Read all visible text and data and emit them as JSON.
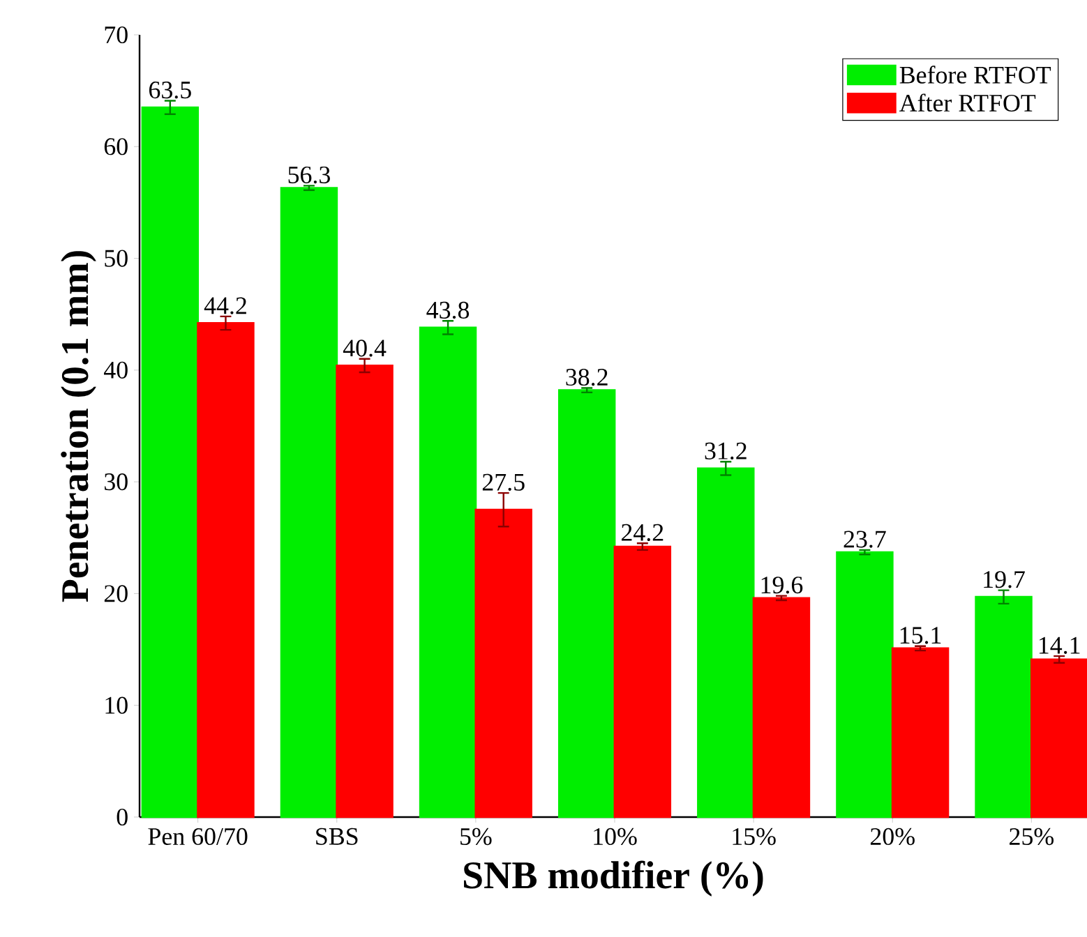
{
  "chart_data": {
    "type": "bar",
    "xlabel": "SNB modifier (%)",
    "ylabel": "Penetration (0.1 mm)",
    "categories": [
      "Pen 60/70",
      "SBS",
      "5%",
      "10%",
      "15%",
      "20%",
      "25%"
    ],
    "series": [
      {
        "name": "Before RTFOT",
        "color": "#00ee00",
        "values": [
          63.5,
          56.3,
          43.8,
          38.2,
          31.2,
          23.7,
          19.7
        ],
        "errors": [
          0.6,
          0.2,
          0.6,
          0.2,
          0.6,
          0.2,
          0.6
        ]
      },
      {
        "name": "After RTFOT",
        "color": "#ff0000",
        "values": [
          44.2,
          40.4,
          27.5,
          24.2,
          19.6,
          15.1,
          14.1
        ],
        "errors": [
          0.6,
          0.6,
          1.5,
          0.3,
          0.2,
          0.2,
          0.3
        ]
      }
    ],
    "ylim": [
      0,
      70
    ],
    "yticks": [
      0,
      10,
      20,
      30,
      40,
      50,
      60,
      70
    ],
    "data_labels": true,
    "legend": "top right",
    "grid": false
  }
}
